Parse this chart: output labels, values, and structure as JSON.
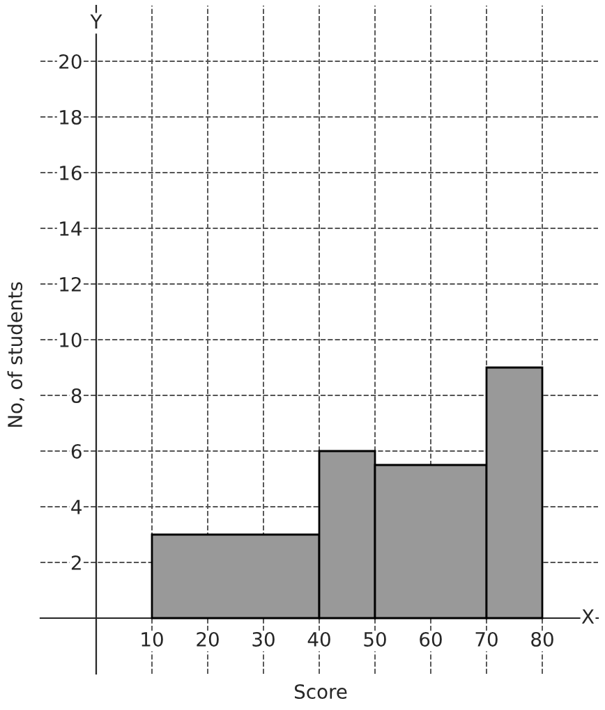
{
  "chart_data": {
    "type": "histogram",
    "xlabel": "Score",
    "ylabel": "No, of students",
    "bins": [
      10,
      40,
      50,
      70,
      80
    ],
    "values": [
      3,
      6,
      5.5,
      9
    ],
    "color": "#999999",
    "xlim": [
      -10,
      90
    ],
    "ylim": [
      -2,
      22
    ],
    "xticks": [
      10,
      20,
      30,
      40,
      50,
      60,
      70,
      80
    ],
    "yticks": [
      2,
      4,
      6,
      8,
      10,
      12,
      14,
      16,
      18,
      20
    ],
    "grid": true,
    "annotations": [
      "X",
      "Y"
    ]
  }
}
